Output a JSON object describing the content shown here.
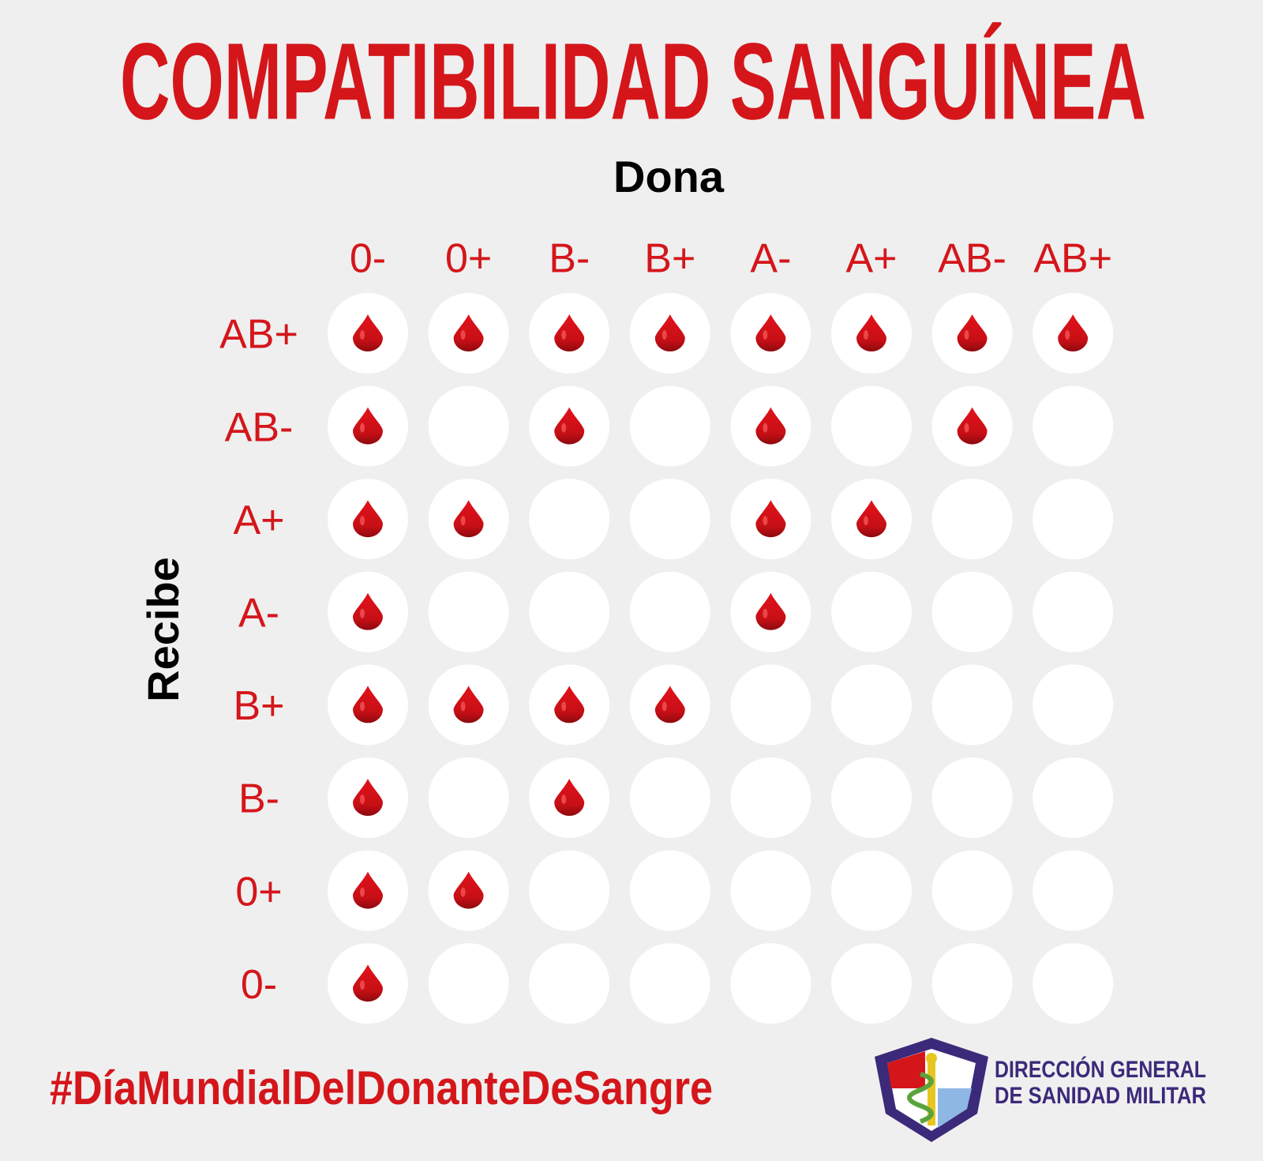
{
  "title": "COMPATIBILIDAD SANGUÍNEA",
  "donor_label": "Dona",
  "receiver_label": "Recibe",
  "donors": [
    "0-",
    "0+",
    "B-",
    "B+",
    "A-",
    "A+",
    "AB-",
    "AB+"
  ],
  "receivers": [
    "AB+",
    "AB-",
    "A+",
    "A-",
    "B+",
    "B-",
    "0+",
    "0-"
  ],
  "compatibility": [
    [
      true,
      true,
      true,
      true,
      true,
      true,
      true,
      true
    ],
    [
      true,
      false,
      true,
      false,
      true,
      false,
      true,
      false
    ],
    [
      true,
      true,
      false,
      false,
      true,
      true,
      false,
      false
    ],
    [
      true,
      false,
      false,
      false,
      true,
      false,
      false,
      false
    ],
    [
      true,
      true,
      true,
      true,
      false,
      false,
      false,
      false
    ],
    [
      true,
      false,
      true,
      false,
      false,
      false,
      false,
      false
    ],
    [
      true,
      true,
      false,
      false,
      false,
      false,
      false,
      false
    ],
    [
      true,
      false,
      false,
      false,
      false,
      false,
      false,
      false
    ]
  ],
  "hashtag": "#DíaMundialDelDonanteDeSangre",
  "organization": [
    "DIRECCIÓN GENERAL",
    "DE SANIDAD MILITAR"
  ]
}
